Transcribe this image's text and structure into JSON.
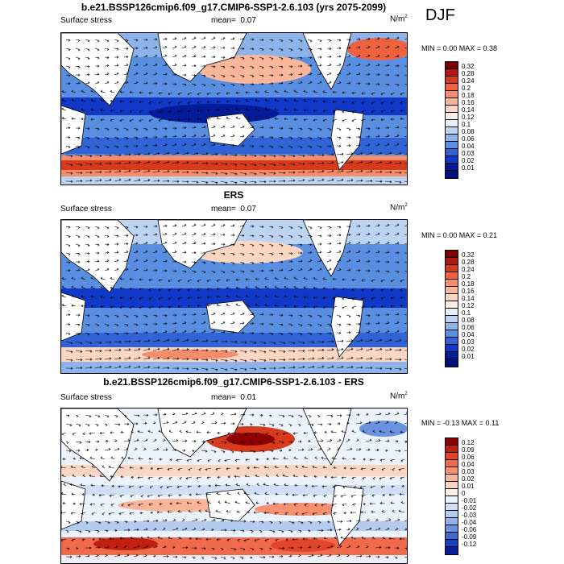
{
  "season": "DJF",
  "panels": [
    {
      "title": "b.e21.BSSP126cmip6.f09_g17.CMIP6-SSP1-2.6.103 (yrs 2075-2099)",
      "left_label": "Surface stress",
      "mean_label": "mean=",
      "mean_value": "0.07",
      "units": "N/m",
      "units_exp": "2",
      "minmax": "MIN =  0.00 MAX =  0.38",
      "colorbar": {
        "labels": [
          "0.32",
          "0.28",
          "0.24",
          "0.2",
          "0.18",
          "0.16",
          "0.14",
          "0.12",
          "0.1",
          "0.08",
          "0.06",
          "0.04",
          "0.03",
          "0.02",
          "0.01"
        ],
        "colors": [
          "#7f0000",
          "#b2180f",
          "#d73a1c",
          "#ef6240",
          "#f58c6a",
          "#f9b69a",
          "#fbd6c3",
          "#fbeee6",
          "#e8f0fa",
          "#bcd4f2",
          "#8cb4ea",
          "#5a8ee0",
          "#2f63d6",
          "#1238c8",
          "#041c9a",
          "#00127a"
        ]
      }
    },
    {
      "title": "ERS",
      "left_label": "Surface stress",
      "mean_label": "mean=",
      "mean_value": "0.07",
      "units": "N/m",
      "units_exp": "2",
      "minmax": "MIN =  0.00 MAX =  0.21",
      "colorbar": {
        "labels": [
          "0.32",
          "0.28",
          "0.24",
          "0.2",
          "0.18",
          "0.16",
          "0.14",
          "0.12",
          "0.1",
          "0.08",
          "0.06",
          "0.04",
          "0.03",
          "0.02",
          "0.01"
        ],
        "colors": [
          "#7f0000",
          "#b2180f",
          "#d73a1c",
          "#ef6240",
          "#f58c6a",
          "#f9b69a",
          "#fbd6c3",
          "#fbeee6",
          "#e8f0fa",
          "#bcd4f2",
          "#8cb4ea",
          "#5a8ee0",
          "#2f63d6",
          "#1238c8",
          "#041c9a",
          "#00127a"
        ]
      }
    },
    {
      "title": "b.e21.BSSP126cmip6.f09_g17.CMIP6-SSP1-2.6.103 - ERS",
      "left_label": "Surface stress",
      "mean_label": "mean=",
      "mean_value": "0.01",
      "units": "N/m",
      "units_exp": "2",
      "minmax": "MIN = -0.13 MAX =  0.11",
      "colorbar": {
        "labels": [
          "0.12",
          "0.09",
          "0.06",
          "0.04",
          "0.03",
          "0.02",
          "0.01",
          "0",
          "-0.01",
          "-0.02",
          "-0.03",
          "-0.04",
          "-0.06",
          "-0.09",
          "-0.12"
        ],
        "colors": [
          "#8f0000",
          "#c0200f",
          "#e0452a",
          "#f06a4c",
          "#f5916f",
          "#f9b598",
          "#fcd5c2",
          "#fbefe8",
          "#ecf2fb",
          "#cfdff5",
          "#b2cbef",
          "#90b2e8",
          "#6a92df",
          "#3e68d2",
          "#1c3ec2",
          "#0a1c9a"
        ]
      }
    }
  ]
}
